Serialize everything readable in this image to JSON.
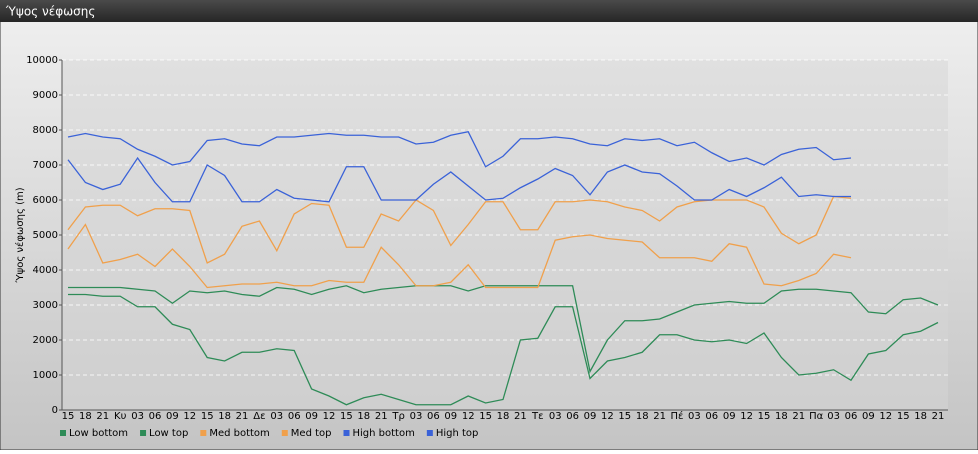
{
  "chart_data": {
    "type": "line",
    "title": "Ύψος νέφωσης",
    "ylabel": "Ύψος νέφωσης (m)",
    "categories": [
      "15",
      "18",
      "21",
      "Κυ",
      "03",
      "06",
      "09",
      "12",
      "15",
      "18",
      "21",
      "Δε",
      "03",
      "06",
      "09",
      "12",
      "15",
      "18",
      "21",
      "Τρ",
      "03",
      "06",
      "09",
      "12",
      "15",
      "18",
      "21",
      "Τε",
      "03",
      "06",
      "09",
      "12",
      "15",
      "18",
      "21",
      "Πέ",
      "03",
      "06",
      "09",
      "12",
      "15",
      "18",
      "21",
      "Πα",
      "03",
      "06",
      "09",
      "12",
      "15",
      "18",
      "21"
    ],
    "ylim": [
      0,
      10000
    ],
    "yticks": [
      0,
      1000,
      2000,
      3000,
      4000,
      5000,
      6000,
      7000,
      8000,
      9000,
      10000
    ],
    "grid": true,
    "series": [
      {
        "name": "Low bottom",
        "color": "#2e8b57",
        "values": [
          3300,
          3300,
          3250,
          3250,
          2950,
          2950,
          2450,
          2300,
          1500,
          1400,
          1650,
          1650,
          1750,
          1700,
          600,
          400,
          150,
          350,
          450,
          300,
          150,
          150,
          150,
          400,
          200,
          300,
          2000,
          2050,
          2950,
          2950,
          900,
          1400,
          1500,
          1650,
          2150,
          2150,
          2000,
          1950,
          2000,
          1900,
          2200,
          1500,
          1000,
          1050,
          1150,
          850,
          1600,
          1700,
          2150,
          2250,
          2500
        ]
      },
      {
        "name": "Low top",
        "color": "#2e8b57",
        "values": [
          3500,
          3500,
          3500,
          3500,
          3450,
          3400,
          3050,
          3400,
          3350,
          3400,
          3300,
          3250,
          3500,
          3450,
          3300,
          3450,
          3550,
          3350,
          3450,
          3500,
          3550,
          3550,
          3550,
          3400,
          3550,
          3550,
          3550,
          3550,
          3550,
          3550,
          1100,
          2000,
          2550,
          2550,
          2600,
          2800,
          3000,
          3050,
          3100,
          3050,
          3050,
          3400,
          3450,
          3450,
          3400,
          3350,
          2800,
          2750,
          3150,
          3200,
          3000
        ]
      },
      {
        "name": "Med bottom",
        "color": "#f0a04b",
        "values": [
          4600,
          5300,
          4200,
          4300,
          4450,
          4100,
          4600,
          4100,
          3500,
          3550,
          3600,
          3600,
          3650,
          3550,
          3550,
          3700,
          3650,
          3650,
          4650,
          4150,
          3550,
          3550,
          3650,
          4150,
          3500,
          3500,
          3500,
          3500,
          4850,
          4950,
          5000,
          4900,
          4850,
          4800,
          4350,
          4350,
          4350,
          4250,
          4750,
          4650,
          3600,
          3550,
          3700,
          3900,
          4450,
          4350,
          null,
          null,
          null,
          null,
          null
        ]
      },
      {
        "name": "Med top",
        "color": "#f0a04b",
        "values": [
          5150,
          5800,
          5850,
          5850,
          5550,
          5750,
          5750,
          5700,
          4200,
          4450,
          5250,
          5400,
          4550,
          5600,
          5900,
          5850,
          4650,
          4650,
          5600,
          5400,
          6000,
          5700,
          4700,
          5300,
          5950,
          5950,
          5150,
          5150,
          5950,
          5950,
          6000,
          5950,
          5800,
          5700,
          5400,
          5800,
          5950,
          6000,
          6000,
          6000,
          5800,
          5050,
          4750,
          5000,
          6100,
          6050,
          null,
          null,
          null,
          null,
          null
        ]
      },
      {
        "name": "High bottom",
        "color": "#3a62d8",
        "values": [
          7150,
          6500,
          6300,
          6450,
          7200,
          6500,
          5950,
          5950,
          7000,
          6700,
          5950,
          5950,
          6300,
          6050,
          6000,
          5950,
          6950,
          6950,
          6000,
          6000,
          6000,
          6450,
          6800,
          6400,
          6000,
          6050,
          6350,
          6600,
          6900,
          6700,
          6150,
          6800,
          7000,
          6800,
          6750,
          6400,
          6000,
          6000,
          6300,
          6100,
          6350,
          6650,
          6100,
          6150,
          6100,
          6100,
          null,
          null,
          null,
          null,
          null
        ]
      },
      {
        "name": "High top",
        "color": "#3a62d8",
        "values": [
          7800,
          7900,
          7800,
          7750,
          7450,
          7250,
          7000,
          7100,
          7700,
          7750,
          7600,
          7550,
          7800,
          7800,
          7850,
          7900,
          7850,
          7850,
          7800,
          7800,
          7600,
          7650,
          7850,
          7950,
          6950,
          7250,
          7750,
          7750,
          7800,
          7750,
          7600,
          7550,
          7750,
          7700,
          7750,
          7550,
          7650,
          7350,
          7100,
          7200,
          7000,
          7300,
          7450,
          7500,
          7150,
          7200,
          null,
          null,
          null,
          null,
          null
        ]
      }
    ]
  }
}
